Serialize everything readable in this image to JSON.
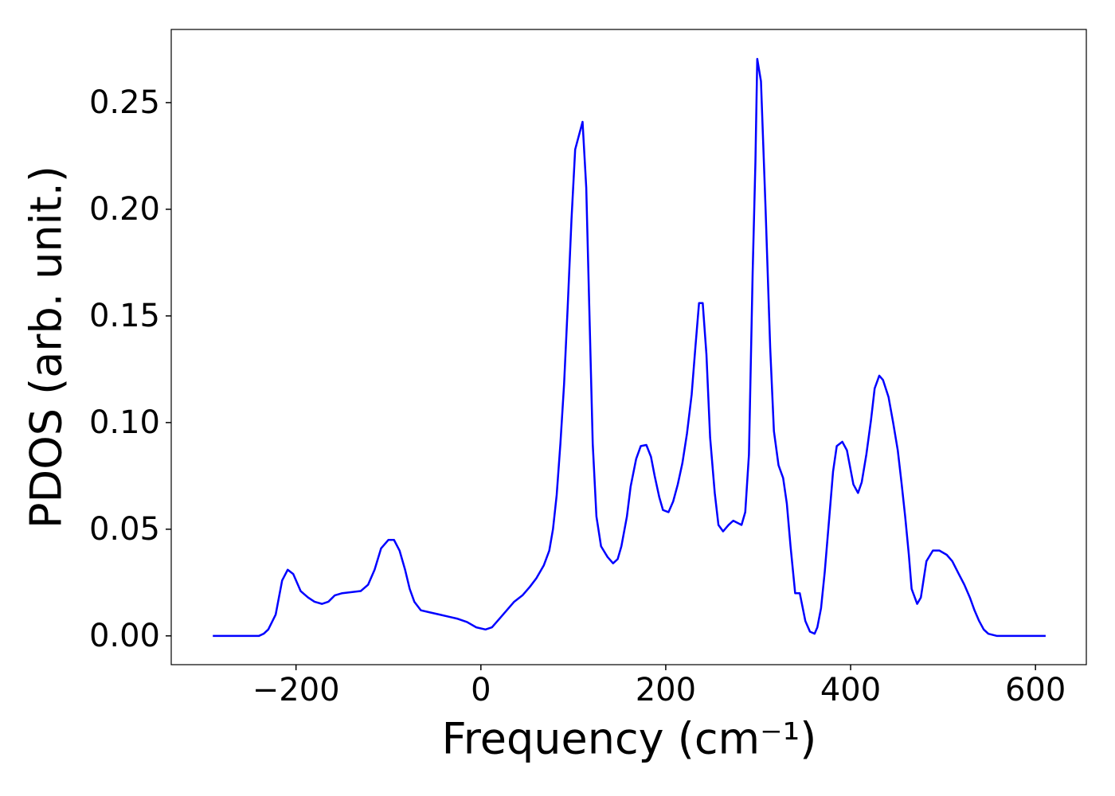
{
  "chart_data": {
    "type": "line",
    "xlabel": "Frequency (cm⁻¹)",
    "ylabel": "PDOS (arb. unit.)",
    "color": "#0000ff",
    "grid": false,
    "x": [
      -290,
      -280,
      -270,
      -260,
      -250,
      -240,
      -235,
      -230,
      -222,
      -215,
      -209,
      -203,
      -195,
      -187,
      -180,
      -172,
      -165,
      -158,
      -150,
      -140,
      -130,
      -122,
      -115,
      -108,
      -100,
      -94,
      -88,
      -82,
      -77,
      -72,
      -65,
      -55,
      -45,
      -35,
      -25,
      -15,
      -5,
      5,
      12,
      20,
      28,
      36,
      45,
      53,
      60,
      68,
      74,
      78,
      82,
      86,
      90,
      94,
      98,
      102,
      110,
      114,
      121,
      125,
      130,
      137,
      143,
      148,
      152,
      158,
      162,
      168,
      173,
      179,
      184,
      188,
      193,
      197,
      203,
      208,
      213,
      218,
      223,
      228,
      232,
      236,
      240,
      244,
      248,
      253,
      257,
      262,
      268,
      273,
      282,
      286,
      290,
      294,
      297,
      299,
      303,
      308,
      313,
      317,
      322,
      327,
      331,
      335,
      340,
      345,
      351,
      356,
      361,
      364,
      368,
      372,
      377,
      381,
      385,
      391,
      396,
      403,
      408,
      412,
      417,
      422,
      426,
      431,
      435,
      441,
      446,
      451,
      455,
      459,
      463,
      466,
      472,
      476,
      482,
      489,
      496,
      504,
      510,
      517,
      523,
      529,
      534,
      539,
      544,
      549,
      558,
      570,
      590,
      611
    ],
    "values": [
      0,
      0,
      0,
      0,
      0,
      0,
      0.001,
      0.003,
      0.01,
      0.026,
      0.031,
      0.029,
      0.021,
      0.018,
      0.016,
      0.015,
      0.016,
      0.019,
      0.02,
      0.0205,
      0.021,
      0.024,
      0.031,
      0.041,
      0.045,
      0.045,
      0.04,
      0.031,
      0.022,
      0.016,
      0.012,
      0.011,
      0.01,
      0.009,
      0.008,
      0.0065,
      0.004,
      0.003,
      0.004,
      0.008,
      0.012,
      0.016,
      0.019,
      0.023,
      0.027,
      0.033,
      0.04,
      0.05,
      0.066,
      0.09,
      0.118,
      0.155,
      0.195,
      0.228,
      0.241,
      0.21,
      0.09,
      0.056,
      0.042,
      0.037,
      0.034,
      0.036,
      0.042,
      0.056,
      0.07,
      0.083,
      0.089,
      0.0895,
      0.084,
      0.075,
      0.065,
      0.059,
      0.058,
      0.063,
      0.071,
      0.081,
      0.095,
      0.113,
      0.135,
      0.156,
      0.156,
      0.132,
      0.093,
      0.067,
      0.052,
      0.049,
      0.052,
      0.054,
      0.052,
      0.058,
      0.085,
      0.17,
      0.222,
      0.2705,
      0.26,
      0.2,
      0.135,
      0.096,
      0.08,
      0.074,
      0.062,
      0.042,
      0.02,
      0.02,
      0.007,
      0.002,
      0.001,
      0.004,
      0.013,
      0.03,
      0.056,
      0.077,
      0.089,
      0.091,
      0.087,
      0.071,
      0.067,
      0.072,
      0.085,
      0.101,
      0.116,
      0.122,
      0.12,
      0.112,
      0.1,
      0.087,
      0.072,
      0.056,
      0.038,
      0.022,
      0.015,
      0.018,
      0.035,
      0.04,
      0.04,
      0.038,
      0.035,
      0.029,
      0.024,
      0.018,
      0.012,
      0.007,
      0.003,
      0.001,
      0,
      0,
      0,
      0
    ],
    "xlim": [
      -335,
      655
    ],
    "ylim": [
      -0.0135,
      0.2843
    ],
    "xticks": [
      {
        "value": -200,
        "label": "−200"
      },
      0,
      200,
      400,
      600
    ],
    "yticks": [
      {
        "value": 0,
        "label": "0.00"
      },
      0.05,
      {
        "value": 0.1,
        "label": "0.10"
      },
      0.15,
      {
        "value": 0.2,
        "label": "0.20"
      },
      0.25
    ]
  }
}
